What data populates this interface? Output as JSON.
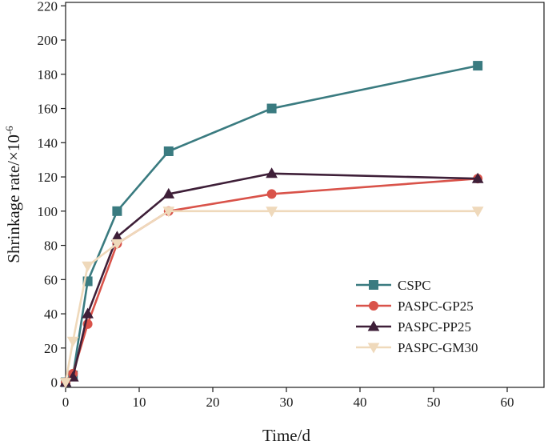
{
  "chart_data": {
    "type": "line",
    "title": "",
    "xlabel": "Time/d",
    "ylabel": "Shrinkage rate/×10",
    "ylabel_exponent": "-6",
    "xlim": [
      0,
      65
    ],
    "ylim": [
      -3,
      222
    ],
    "x_ticks": [
      0,
      10,
      20,
      30,
      40,
      50,
      60
    ],
    "y_ticks": [
      0,
      20,
      40,
      60,
      80,
      100,
      120,
      140,
      160,
      180,
      200,
      220
    ],
    "grid": false,
    "legend_position": "lower-right",
    "series": [
      {
        "name": "CSPC",
        "color": "#3a7b80",
        "marker": "square",
        "x": [
          0,
          1,
          3,
          7,
          14,
          28,
          56
        ],
        "y": [
          0,
          4,
          59,
          100,
          135,
          160,
          185
        ]
      },
      {
        "name": "PASPC-GP25",
        "color": "#d9534a",
        "marker": "circle",
        "x": [
          0,
          1,
          3,
          7,
          14,
          28,
          56
        ],
        "y": [
          0,
          5,
          34,
          81,
          100,
          110,
          119
        ]
      },
      {
        "name": "PASPC-PP25",
        "color": "#3e1f38",
        "marker": "triangle-up",
        "x": [
          0,
          1,
          3,
          7,
          14,
          28,
          56
        ],
        "y": [
          0,
          3,
          40,
          85,
          110,
          122,
          119
        ]
      },
      {
        "name": "PASPC-GM30",
        "color": "#efd9bb",
        "marker": "triangle-down",
        "x": [
          0,
          1,
          3,
          7,
          14,
          28,
          56
        ],
        "y": [
          0,
          24,
          68,
          81,
          100,
          100,
          100
        ]
      }
    ]
  }
}
